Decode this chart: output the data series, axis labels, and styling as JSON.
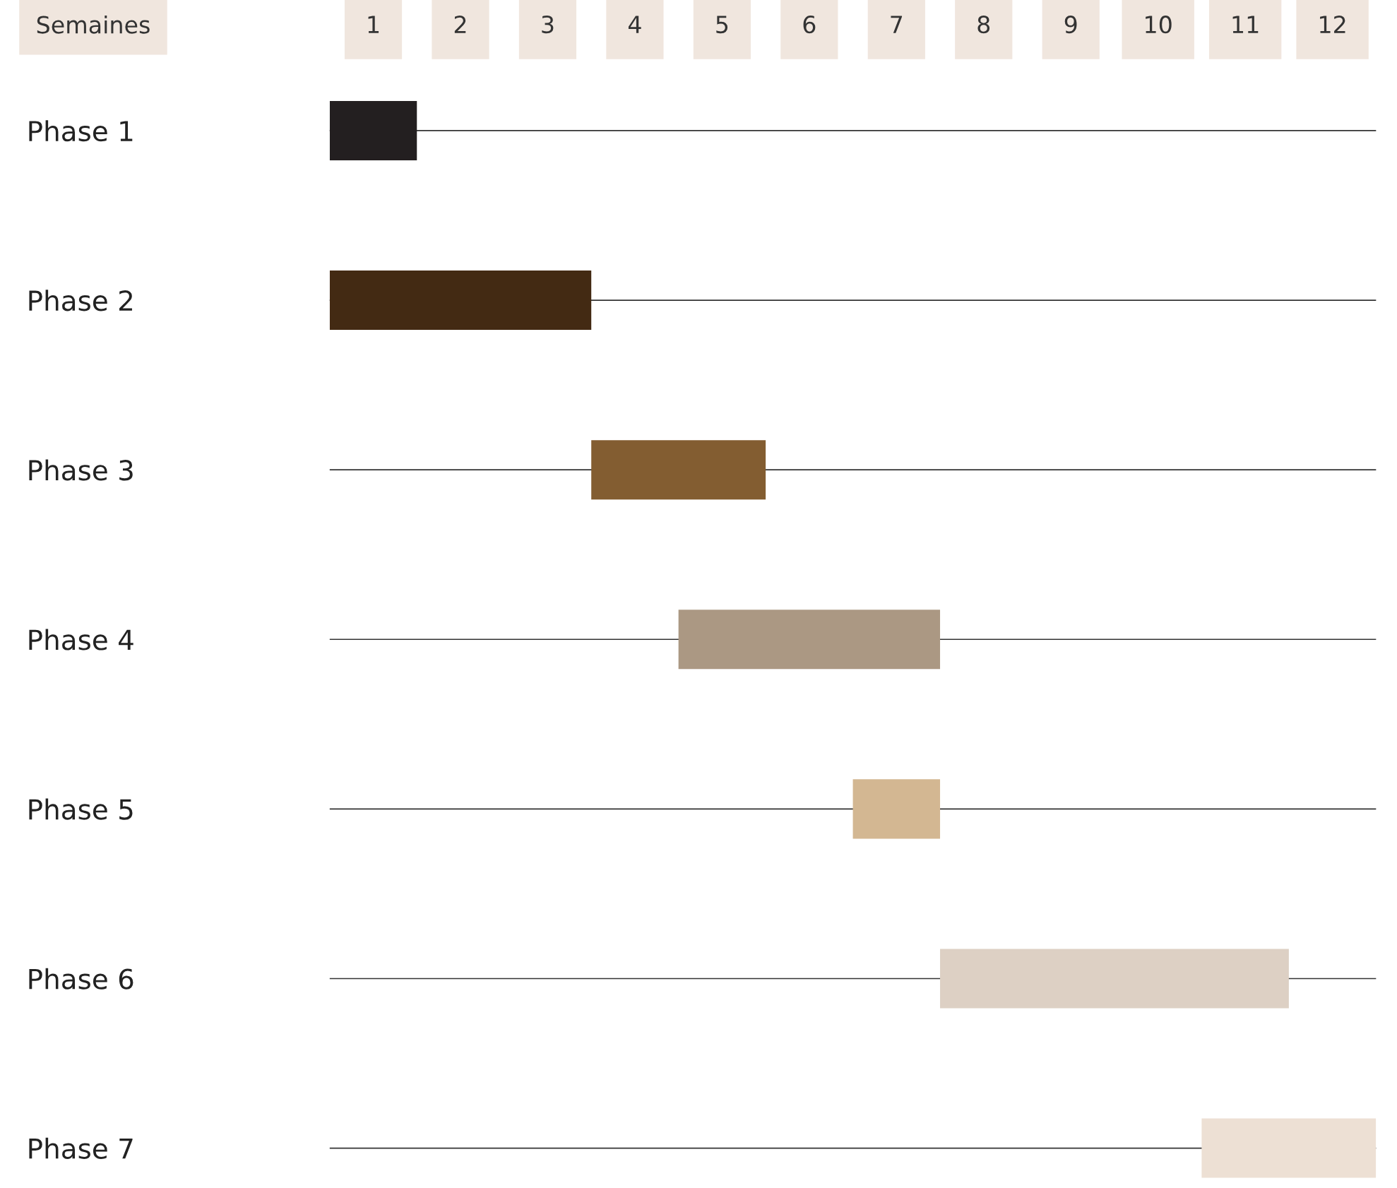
{
  "chart_data": {
    "type": "bar",
    "orientation": "horizontal",
    "xlabel": "Semaines",
    "categories": [
      "Phase 1",
      "Phase 2",
      "Phase 3",
      "Phase 4",
      "Phase 5",
      "Phase 6",
      "Phase 7"
    ],
    "base": [
      0,
      0,
      3,
      4,
      6,
      7,
      10
    ],
    "values": [
      1,
      3,
      2,
      3,
      1,
      4,
      2
    ],
    "colors": [
      "#231f20",
      "#432a13",
      "#835d31",
      "#ab9883",
      "#d3b792",
      "#ddd0c4",
      "#ede0d4"
    ],
    "xlim": [
      0,
      12
    ],
    "xticks": [
      {
        "value": 0.5,
        "label": "1"
      },
      {
        "value": 1.5,
        "label": "2"
      },
      {
        "value": 2.5,
        "label": "3"
      },
      {
        "value": 3.5,
        "label": "4"
      },
      {
        "value": 4.5,
        "label": "5"
      },
      {
        "value": 5.5,
        "label": "6"
      },
      {
        "value": 6.5,
        "label": "7"
      },
      {
        "value": 7.5,
        "label": "8"
      },
      {
        "value": 8.5,
        "label": "9"
      },
      {
        "value": 9.5,
        "label": "10"
      },
      {
        "value": 10.5,
        "label": "11"
      },
      {
        "value": 11.5,
        "label": "12"
      }
    ],
    "grid": "y",
    "legend": false
  }
}
